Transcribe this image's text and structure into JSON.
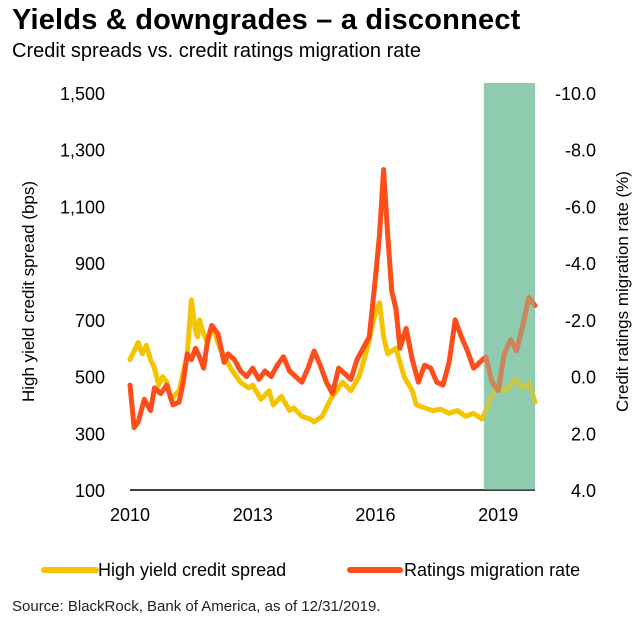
{
  "header": {
    "title": "Yields & downgrades – a disconnect",
    "subtitle": "Credit spreads vs. credit ratings migration rate"
  },
  "source": "Source: BlackRock, Bank of America, as of 12/31/2019.",
  "chart_data": {
    "type": "line",
    "title": "Yields & downgrades – a disconnect",
    "subtitle": "Credit spreads vs. credit ratings migration rate",
    "xlabel": "",
    "ylabel": "High yield credit spread (bps)",
    "y2label": "Credit ratings migration rate (%)",
    "xlim": [
      2010,
      2019.9
    ],
    "ylim": [
      100,
      1500
    ],
    "y2lim": [
      4.0,
      -10.0
    ],
    "y2_reversed": true,
    "x_ticks": [
      2010,
      2013,
      2016,
      2019
    ],
    "x_tick_labels": [
      "2010",
      "2013",
      "2016",
      "2019"
    ],
    "y_ticks": [
      100,
      300,
      500,
      700,
      900,
      1100,
      1300,
      1500
    ],
    "y_tick_labels": [
      "100",
      "300",
      "500",
      "700",
      "900",
      "1,100",
      "1,300",
      "1,500"
    ],
    "y2_ticks": [
      4.0,
      2.0,
      0.0,
      -2.0,
      -4.0,
      -6.0,
      -8.0,
      -10.0
    ],
    "y2_tick_labels": [
      "4.0",
      "2.0",
      "0.0",
      "-2.0",
      "-4.0",
      "-6.0",
      "-8.0",
      "-10.0"
    ],
    "grid": false,
    "legend_position": "bottom",
    "highlight": {
      "x_start": 2018.65,
      "x_end": 2019.9,
      "color": "#8fcbb0"
    },
    "series": [
      {
        "name": "High yield credit spread",
        "axis": "left",
        "color": "#f5c400",
        "x": [
          2010.0,
          2010.1,
          2010.2,
          2010.3,
          2010.4,
          2010.5,
          2010.6,
          2010.7,
          2010.8,
          2010.9,
          2011.0,
          2011.2,
          2011.4,
          2011.5,
          2011.6,
          2011.65,
          2011.7,
          2011.8,
          2011.9,
          2012.0,
          2012.2,
          2012.3,
          2012.5,
          2012.7,
          2012.9,
          2013.0,
          2013.2,
          2013.4,
          2013.5,
          2013.7,
          2013.9,
          2014.0,
          2014.2,
          2014.4,
          2014.5,
          2014.7,
          2014.9,
          2015.0,
          2015.2,
          2015.4,
          2015.6,
          2015.8,
          2015.95,
          2016.1,
          2016.2,
          2016.3,
          2016.5,
          2016.7,
          2016.9,
          2017.0,
          2017.2,
          2017.4,
          2017.6,
          2017.8,
          2018.0,
          2018.2,
          2018.4,
          2018.6,
          2018.7,
          2018.8,
          2019.0,
          2019.2,
          2019.4,
          2019.6,
          2019.75,
          2019.9
        ],
        "values": [
          560,
          590,
          620,
          580,
          610,
          560,
          530,
          470,
          500,
          480,
          420,
          450,
          580,
          770,
          660,
          640,
          700,
          650,
          620,
          680,
          600,
          570,
          520,
          480,
          460,
          470,
          420,
          450,
          400,
          430,
          380,
          390,
          360,
          350,
          340,
          360,
          420,
          440,
          480,
          450,
          500,
          600,
          700,
          760,
          640,
          580,
          600,
          500,
          450,
          400,
          390,
          380,
          385,
          370,
          380,
          360,
          370,
          350,
          380,
          420,
          470,
          450,
          490,
          460,
          480,
          410
        ]
      },
      {
        "name": "Ratings migration rate",
        "axis": "right",
        "color": "#ff4d1a",
        "x": [
          2010.0,
          2010.1,
          2010.2,
          2010.35,
          2010.5,
          2010.6,
          2010.75,
          2010.9,
          2011.05,
          2011.2,
          2011.3,
          2011.4,
          2011.5,
          2011.6,
          2011.7,
          2011.8,
          2011.9,
          2012.0,
          2012.15,
          2012.3,
          2012.4,
          2012.55,
          2012.7,
          2012.85,
          2013.0,
          2013.15,
          2013.3,
          2013.45,
          2013.6,
          2013.75,
          2013.9,
          2014.05,
          2014.2,
          2014.35,
          2014.5,
          2014.65,
          2014.8,
          2014.95,
          2015.1,
          2015.25,
          2015.4,
          2015.55,
          2015.7,
          2015.85,
          2016.0,
          2016.1,
          2016.2,
          2016.3,
          2016.4,
          2016.5,
          2016.6,
          2016.75,
          2016.9,
          2017.05,
          2017.2,
          2017.35,
          2017.5,
          2017.65,
          2017.8,
          2017.95,
          2018.1,
          2018.25,
          2018.4,
          2018.55,
          2018.7,
          2018.85,
          2019.0,
          2019.15,
          2019.3,
          2019.45,
          2019.6,
          2019.75,
          2019.9
        ],
        "values": [
          0.3,
          1.8,
          1.6,
          0.8,
          1.2,
          0.4,
          0.6,
          0.3,
          1.0,
          0.9,
          0.2,
          -0.8,
          -0.6,
          -1.0,
          -0.7,
          -0.3,
          -1.3,
          -1.8,
          -1.5,
          -0.5,
          -0.8,
          -0.6,
          -0.2,
          0.0,
          -0.3,
          0.1,
          -0.2,
          0.0,
          -0.4,
          -0.7,
          -0.2,
          0.0,
          0.2,
          -0.3,
          -0.9,
          -0.4,
          0.2,
          0.6,
          -0.3,
          -0.1,
          0.1,
          -0.6,
          -1.0,
          -1.4,
          -3.5,
          -5.0,
          -7.3,
          -5.0,
          -3.0,
          -2.4,
          -1.0,
          -1.7,
          -0.6,
          0.2,
          -0.4,
          -0.3,
          0.2,
          0.3,
          -0.5,
          -2.0,
          -1.4,
          -0.9,
          -0.3,
          -0.5,
          -0.7,
          0.2,
          0.5,
          -0.8,
          -1.3,
          -0.9,
          -1.8,
          -2.8,
          -2.5
        ]
      }
    ]
  }
}
